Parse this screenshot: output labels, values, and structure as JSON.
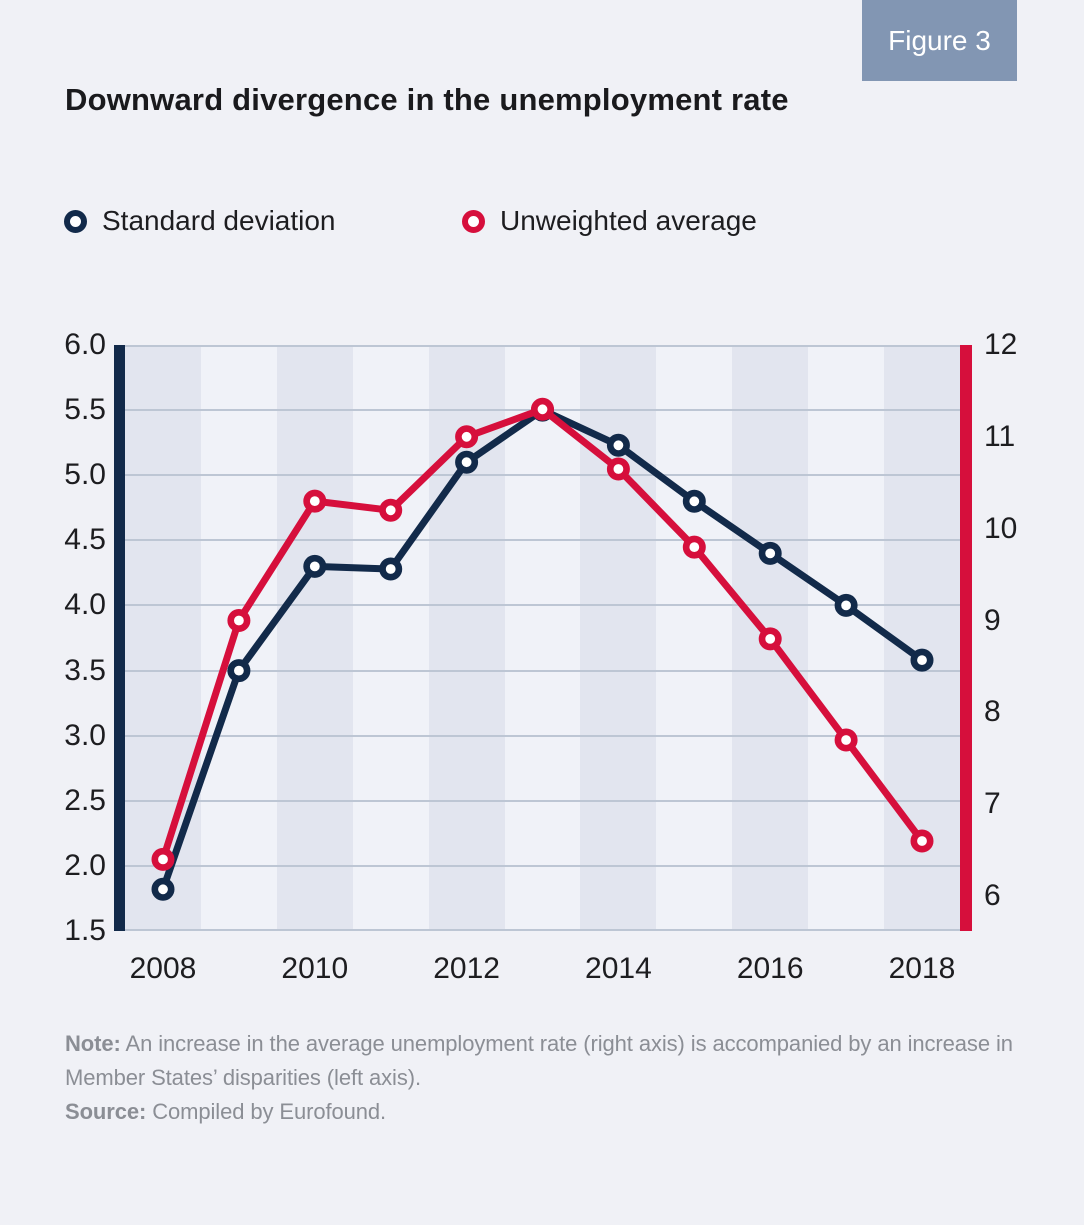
{
  "figure_label": "Figure 3",
  "title": "Downward divergence in the unemployment rate",
  "legend": [
    {
      "label": "Standard deviation",
      "color": "#122a4a"
    },
    {
      "label": "Unweighted average",
      "color": "#d60f3c"
    }
  ],
  "note": {
    "note_label": "Note:",
    "note_text": "An increase in the average unemployment rate (right axis) is accompanied by an increase in Member States’ disparities (left axis).",
    "source_label": "Source:",
    "source_text": "Compiled by Eurofound."
  },
  "colors": {
    "background": "#f0f1f6",
    "badge": "#8296b3",
    "navy": "#122a4a",
    "crimson": "#d60f3c",
    "gridline": "#bdc6d4",
    "band_dark": "#e2e5ef",
    "band_light": "#f0f2f8",
    "note_gray": "#8b8e95"
  },
  "chart_data": {
    "type": "line",
    "title": "Downward divergence in the unemployment rate",
    "x": [
      2008,
      2009,
      2010,
      2011,
      2012,
      2013,
      2014,
      2015,
      2016,
      2017,
      2018
    ],
    "x_tick_labels": [
      "2008",
      "2010",
      "2012",
      "2014",
      "2016",
      "2018"
    ],
    "grid": "horizontal",
    "legend_position": "top-left",
    "left_axis": {
      "min": 1.5,
      "max": 6.0,
      "tick_step": 0.5,
      "tick_labels": [
        "6.0",
        "5.5",
        "5.0",
        "4.5",
        "4.0",
        "3.5",
        "3.0",
        "2.5",
        "2.0",
        "1.5"
      ]
    },
    "right_axis": {
      "min": 5.62,
      "max": 12,
      "tick_values": [
        12,
        11,
        10,
        9,
        8,
        7,
        6
      ],
      "tick_labels": [
        "12",
        "11",
        "10",
        "9",
        "8",
        "7",
        "6"
      ]
    },
    "band_colors": {
      "dark": "#e2e5ef",
      "light": "#f0f2f8"
    },
    "series": [
      {
        "name": "Standard deviation",
        "axis": "left",
        "color": "#122a4a",
        "values": [
          1.82,
          3.5,
          4.3,
          4.28,
          5.1,
          5.5,
          5.23,
          4.8,
          4.4,
          4.0,
          3.58
        ]
      },
      {
        "name": "Unweighted average",
        "axis": "right",
        "color": "#d60f3c",
        "values": [
          6.4,
          9.0,
          10.3,
          10.2,
          11.0,
          11.3,
          10.65,
          9.8,
          8.8,
          7.7,
          6.6
        ]
      }
    ]
  }
}
